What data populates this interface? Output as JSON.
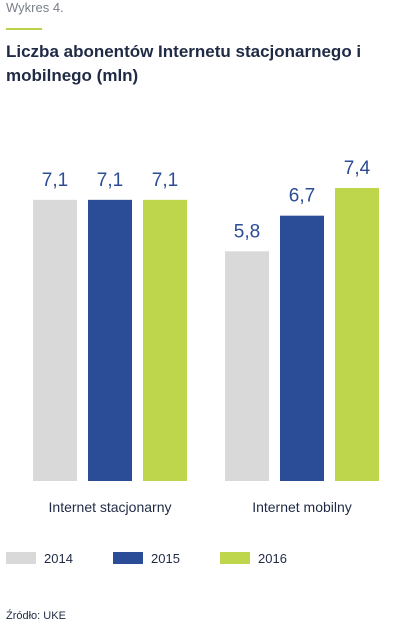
{
  "figure_label": "Wykres 4.",
  "title": "Liczba abonentów Internetu stacjonarnego i mobilnego (mln)",
  "source": "Źródło: UKE",
  "chart_data": {
    "type": "bar",
    "title": "Liczba abonentów Internetu stacjonarnego i mobilnego (mln)",
    "xlabel": "",
    "ylabel": "",
    "categories": [
      "Internet stacjonarny",
      "Internet mobilny"
    ],
    "series": [
      {
        "name": "2014",
        "color": "#d9d9d9",
        "values": [
          7.1,
          5.8
        ],
        "labels": [
          "7,1",
          "5,8"
        ]
      },
      {
        "name": "2015",
        "color": "#2b4c96",
        "values": [
          7.1,
          6.7
        ],
        "labels": [
          "7,1",
          "6,7"
        ]
      },
      {
        "name": "2016",
        "color": "#bed64c",
        "values": [
          7.1,
          7.4
        ],
        "labels": [
          "7,1",
          "7,4"
        ]
      }
    ],
    "ylim": [
      0,
      8
    ],
    "grid": false,
    "legend_position": "bottom",
    "label_color": "#2b4c96"
  }
}
